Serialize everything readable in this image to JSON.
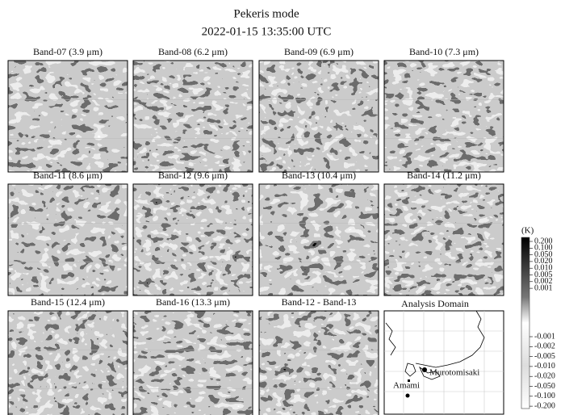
{
  "title": "Pekeris mode",
  "subtitle": "2022-01-15 13:35:00 UTC",
  "panels": [
    {
      "title": "Band-07 (3.9 μm)"
    },
    {
      "title": "Band-08 (6.2 μm)"
    },
    {
      "title": "Band-09 (6.9 μm)"
    },
    {
      "title": "Band-10 (7.3 μm)"
    },
    {
      "title": "Band-11 (8.6 μm)"
    },
    {
      "title": "Band-12 (9.6 μm)"
    },
    {
      "title": "Band-13 (10.4 μm)"
    },
    {
      "title": "Band-14 (11.2 μm)"
    },
    {
      "title": "Band-15 (12.4 μm)"
    },
    {
      "title": "Band-16 (13.3 μm)"
    },
    {
      "title": "Band-12 - Band-13"
    }
  ],
  "map": {
    "title": "Analysis Domain",
    "labels": [
      "Murotomisaki",
      "Amami"
    ]
  },
  "colorbar": {
    "unit": "(K)",
    "ticks": [
      "0.200",
      "0.100",
      "0.050",
      "0.020",
      "0.010",
      "0.005",
      "0.002",
      "0.001",
      "-0.001",
      "-0.002",
      "-0.005",
      "-0.010",
      "-0.020",
      "-0.050",
      "-0.100",
      "-0.200"
    ]
  }
}
